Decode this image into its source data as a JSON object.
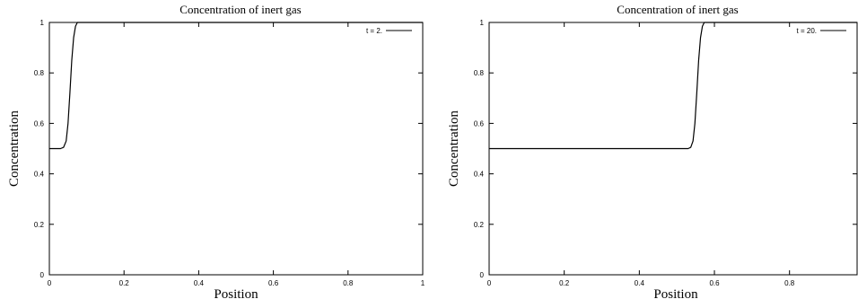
{
  "chart_data": [
    {
      "type": "line",
      "title": "Concentration of inert gas",
      "xlabel": "Position",
      "ylabel": "Concentration",
      "xlim": [
        0,
        1
      ],
      "ylim": [
        0,
        1
      ],
      "xticks": [
        "0",
        "0.2",
        "0.4",
        "0.6",
        "0.8",
        "1"
      ],
      "xtick_values": [
        0,
        0.2,
        0.4,
        0.6,
        0.8,
        1
      ],
      "yticks": [
        "0",
        "0.2",
        "0.4",
        "0.6",
        "0.8",
        "1"
      ],
      "ytick_values": [
        0,
        0.2,
        0.4,
        0.6,
        0.8,
        1
      ],
      "grid": false,
      "legend_position": "top-right",
      "series": [
        {
          "name": "t = 2.",
          "color": "#000000",
          "x": [
            0,
            0.03,
            0.038,
            0.045,
            0.05,
            0.055,
            0.06,
            0.065,
            0.07,
            0.075,
            0.085,
            1
          ],
          "y": [
            0.5,
            0.5,
            0.505,
            0.53,
            0.6,
            0.72,
            0.85,
            0.94,
            0.985,
            1.0,
            1.0,
            1.0
          ]
        }
      ]
    },
    {
      "type": "line",
      "title": "Concentration of inert gas",
      "xlabel": "Position",
      "ylabel": "Concentration",
      "xlim": [
        0,
        0.98
      ],
      "ylim": [
        0,
        1
      ],
      "xticks": [
        "0",
        "0.2",
        "0.4",
        "0.6",
        "0.8"
      ],
      "xtick_values": [
        0,
        0.2,
        0.4,
        0.6,
        0.8
      ],
      "yticks": [
        "0",
        "0.2",
        "0.4",
        "0.6",
        "0.8",
        "1"
      ],
      "ytick_values": [
        0,
        0.2,
        0.4,
        0.6,
        0.8,
        1
      ],
      "grid": false,
      "legend_position": "top-right",
      "series": [
        {
          "name": "t = 20.",
          "color": "#000000",
          "x": [
            0,
            0.53,
            0.537,
            0.543,
            0.548,
            0.553,
            0.558,
            0.563,
            0.568,
            0.573,
            0.585,
            0.98
          ],
          "y": [
            0.5,
            0.5,
            0.505,
            0.53,
            0.6,
            0.72,
            0.85,
            0.94,
            0.985,
            1.0,
            1.0,
            1.0
          ]
        }
      ]
    }
  ]
}
